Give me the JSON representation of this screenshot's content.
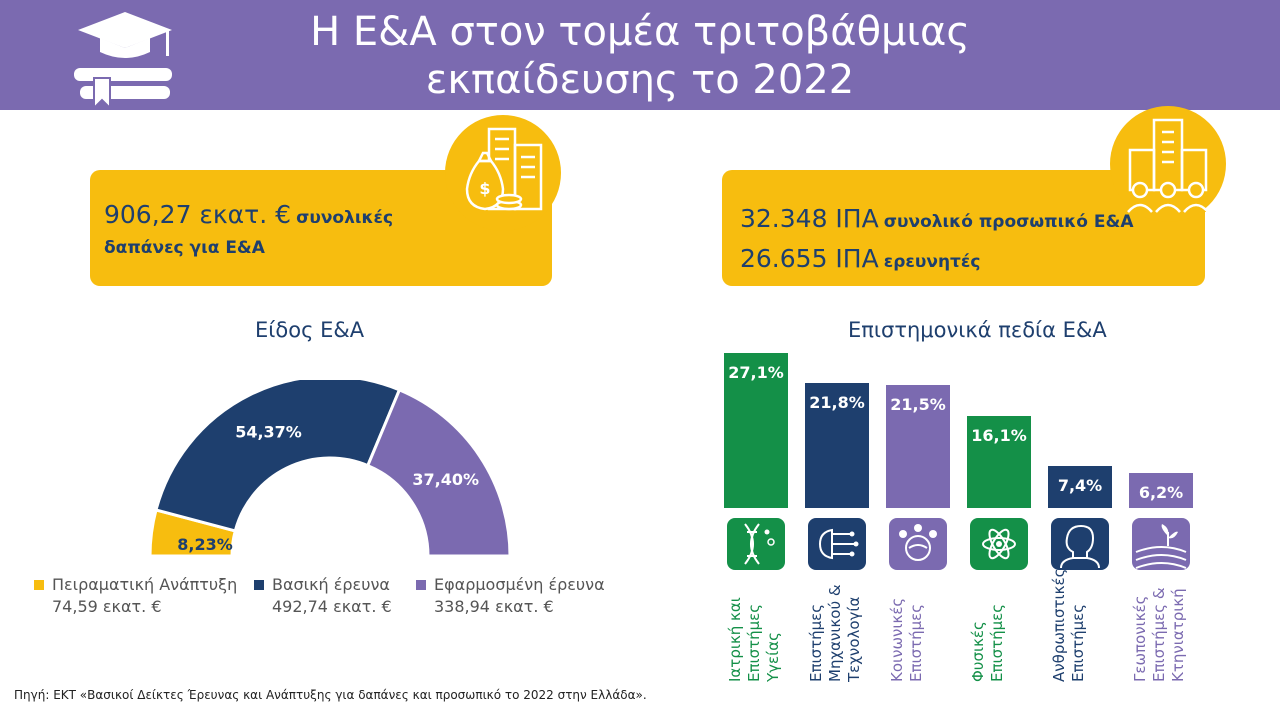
{
  "header": {
    "title_line1": "Η Ε&Α στον τομέα τριτοβάθμιας",
    "title_line2": "εκπαίδευσης το 2022",
    "icon": "graduation-cap-books-icon"
  },
  "colors": {
    "purple": "#7b6ab0",
    "yellow": "#f7bd0f",
    "navy": "#1e3f6e",
    "green": "#149048"
  },
  "left_box": {
    "big": "906,27 εκατ. €",
    "small_a": "συνολικές",
    "small_b": "δαπάνες για Ε&Α",
    "icon": "money-bag-buildings-icon"
  },
  "right_box": {
    "line1_big": "32.348 ΙΠΑ",
    "line1_small": "συνολικό προσωπικό Ε&Α",
    "line2_big": "26.655 ΙΠΑ",
    "line2_small": "ερευνητές",
    "icon": "building-people-icon"
  },
  "donut_section": {
    "title": "Είδος Ε&Α"
  },
  "bars_section": {
    "title": "Επιστημονικά πεδία Ε&Α"
  },
  "chart_data": [
    {
      "type": "pie",
      "title": "Είδος Ε&Α",
      "style": "half-donut",
      "slices": [
        {
          "name": "Πειραματική Ανάπτυξη",
          "value": 8.23,
          "label": "8,23%",
          "amount": "74,59 εκατ. €",
          "color": "#f7bd0f"
        },
        {
          "name": "Βασική έρευνα",
          "value": 54.37,
          "label": "54,37%",
          "amount": "492,74 εκατ. €",
          "color": "#1e3f6e"
        },
        {
          "name": "Εφαρμοσμένη έρευνα",
          "value": 37.4,
          "label": "37,40%",
          "amount": "338,94 εκατ. €",
          "color": "#7b6ab0"
        }
      ]
    },
    {
      "type": "bar",
      "title": "Επιστημονικά πεδία Ε&Α",
      "ylim": [
        0,
        27.1
      ],
      "categories": [
        "Ιατρική και\nΕπιστήμες\nΥγείας",
        "Επιστήμες\nΜηχανικού &\nΤεχνολογία",
        "Κοινωνικές\nΕπιστήμες",
        "Φυσικές\nΕπιστήμες",
        "Ανθρωπιστικές\nΕπιστήμες",
        "Γεωπονικές\nΕπιστήμες &\nΚτηνιατρική"
      ],
      "values": [
        27.1,
        21.8,
        21.5,
        16.1,
        7.4,
        6.2
      ],
      "labels": [
        "27,1%",
        "21,8%",
        "21,5%",
        "16,1%",
        "7,4%",
        "6,2%"
      ],
      "colors": [
        "#149048",
        "#1e3f6e",
        "#7b6ab0",
        "#149048",
        "#1e3f6e",
        "#7b6ab0"
      ],
      "icons": [
        "dna-icon",
        "circuit-brain-icon",
        "people-globe-icon",
        "atom-icon",
        "human-head-icon",
        "field-sprout-icon"
      ]
    }
  ],
  "source": "Πηγή: ΕΚΤ «Βασικοί Δείκτες Έρευνας και Ανάπτυξης για δαπάνες και προσωπικό το 2022 στην Ελλάδα»."
}
